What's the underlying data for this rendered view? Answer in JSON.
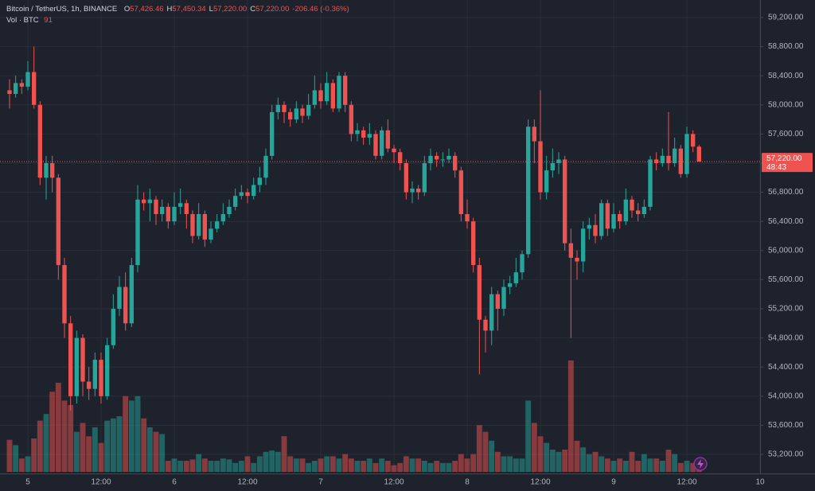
{
  "chart_data": {
    "type": "candlestick",
    "title": "Bitcoin / TetherUS, 1h, BINANCE",
    "ohlc_legend": [
      {
        "key": "O",
        "value": "57,426.46"
      },
      {
        "key": "H",
        "value": "57,450.34"
      },
      {
        "key": "L",
        "value": "57,220.00"
      },
      {
        "key": "C",
        "value": "57,220.00"
      }
    ],
    "change": "-206.46 (-0.36%)",
    "volume_legend": {
      "label": "Vol · BTC",
      "value": "91"
    },
    "up_color": "#26a69a",
    "down_color": "#ef5350",
    "grid": true,
    "ylim": [
      52960,
      59440
    ],
    "yticks": [
      {
        "value": 53200,
        "label": "53,200.00"
      },
      {
        "value": 53600,
        "label": "53,600.00"
      },
      {
        "value": 54000,
        "label": "54,000.00"
      },
      {
        "value": 54400,
        "label": "54,400.00"
      },
      {
        "value": 54800,
        "label": "54,800.00"
      },
      {
        "value": 55200,
        "label": "55,200.00"
      },
      {
        "value": 55600,
        "label": "55,600.00"
      },
      {
        "value": 56000,
        "label": "56,000.00"
      },
      {
        "value": 56400,
        "label": "56,400.00"
      },
      {
        "value": 56800,
        "label": "56,800.00"
      },
      {
        "value": 57200,
        "label": "57,200.00"
      },
      {
        "value": 57600,
        "label": "57,600.00"
      },
      {
        "value": 58000,
        "label": "58,000.00"
      },
      {
        "value": 58400,
        "label": "58,400.00"
      },
      {
        "value": 58800,
        "label": "58,800.00"
      },
      {
        "value": 59200,
        "label": "59,200.00"
      }
    ],
    "last_price": {
      "value": 57220,
      "label": "57,220.00",
      "countdown": "48:43"
    },
    "categories": [
      null,
      null,
      null,
      "5",
      null,
      null,
      null,
      null,
      null,
      null,
      null,
      null,
      null,
      null,
      null,
      "12:00",
      null,
      null,
      null,
      null,
      null,
      null,
      null,
      null,
      null,
      null,
      null,
      "6",
      null,
      null,
      null,
      null,
      null,
      null,
      null,
      null,
      null,
      null,
      null,
      "12:00",
      null,
      null,
      null,
      null,
      null,
      null,
      null,
      null,
      null,
      null,
      null,
      "7",
      null,
      null,
      null,
      null,
      null,
      null,
      null,
      null,
      null,
      null,
      null,
      "12:00",
      null,
      null,
      null,
      null,
      null,
      null,
      null,
      null,
      null,
      null,
      null,
      "8",
      null,
      null,
      null,
      null,
      null,
      null,
      null,
      null,
      null,
      null,
      null,
      "12:00",
      null,
      null,
      null,
      null,
      null,
      null,
      null,
      null,
      null,
      null,
      null,
      "9",
      null,
      null,
      null,
      null,
      null,
      null,
      null,
      null,
      null,
      null,
      null,
      "12:00",
      null,
      null,
      null,
      null,
      null,
      null,
      null,
      null,
      null,
      null,
      null,
      "10"
    ],
    "open": [
      58200,
      58150,
      58300,
      58250,
      58450,
      58000,
      57000,
      57200,
      57000,
      55800,
      55000,
      54000,
      54800,
      54200,
      54100,
      54500,
      54000,
      54700,
      55200,
      55500,
      55000,
      55800,
      56700,
      56650,
      56700,
      56500,
      56600,
      56400,
      56600,
      56650,
      56500,
      56200,
      56500,
      56150,
      56300,
      56400,
      56500,
      56600,
      56750,
      56800,
      56750,
      56900,
      57000,
      57300,
      57900,
      58000,
      57900,
      57800,
      57950,
      57850,
      58000,
      58200,
      58050,
      58300,
      57950,
      58400,
      58000,
      57600,
      57650,
      57550,
      57600,
      57300,
      57650,
      57400,
      57350,
      57200,
      56800,
      56850,
      56800,
      57200,
      57300,
      57250,
      57250,
      57300,
      57100,
      56500,
      56400,
      55800,
      55050,
      54900,
      55400,
      55200,
      55500,
      55550,
      55700,
      55950,
      57700,
      57500,
      56800,
      57100,
      57200,
      57250,
      56100,
      55900,
      55850,
      56300,
      56350,
      56200,
      56650,
      56300,
      56500,
      56400,
      56700,
      56550,
      56500,
      56600,
      57250,
      57200,
      57300,
      57200,
      57400,
      57050,
      57600,
      57426.46,
      null,
      null,
      null,
      null,
      null,
      null,
      null,
      null,
      null,
      null
    ],
    "high": [
      58350,
      58400,
      58350,
      58600,
      58800,
      58050,
      57300,
      57300,
      57050,
      55900,
      55100,
      54900,
      54850,
      54400,
      54600,
      54600,
      54800,
      55400,
      55650,
      55700,
      55900,
      56900,
      56800,
      56850,
      56750,
      56700,
      56650,
      56800,
      56850,
      56700,
      56550,
      56650,
      56550,
      56400,
      56500,
      56650,
      56700,
      56850,
      56900,
      56850,
      57000,
      57150,
      57400,
      58000,
      58100,
      58050,
      57950,
      58050,
      58000,
      58150,
      58400,
      58300,
      58450,
      58350,
      58450,
      58450,
      58050,
      57750,
      57700,
      57750,
      57650,
      57700,
      57800,
      57450,
      57400,
      57250,
      56950,
      56900,
      57300,
      57400,
      57350,
      57350,
      57400,
      57350,
      57150,
      56700,
      56450,
      55900,
      55100,
      55500,
      55450,
      55600,
      55650,
      55900,
      56000,
      57800,
      57800,
      58200,
      57300,
      57400,
      57350,
      57300,
      56300,
      56000,
      56400,
      56450,
      56500,
      56700,
      56700,
      56650,
      56550,
      56850,
      56750,
      56650,
      56700,
      57300,
      57350,
      57400,
      57900,
      57550,
      57450,
      57700,
      57650,
      57450.34,
      null,
      null,
      null,
      null,
      null,
      null,
      null,
      null,
      null,
      null
    ],
    "low": [
      57950,
      58100,
      58150,
      58200,
      57950,
      56900,
      56700,
      56800,
      55600,
      54800,
      53800,
      53900,
      54000,
      53950,
      54000,
      53900,
      53950,
      54650,
      55100,
      54900,
      54950,
      55700,
      56550,
      56400,
      56350,
      56400,
      56300,
      56350,
      56500,
      56300,
      56100,
      56150,
      56050,
      56100,
      56250,
      56350,
      56450,
      56550,
      56700,
      56650,
      56700,
      56800,
      56900,
      57250,
      57800,
      57750,
      57700,
      57750,
      57750,
      57800,
      57950,
      57950,
      58000,
      57900,
      57900,
      57900,
      57500,
      57500,
      57450,
      57450,
      57250,
      57250,
      57350,
      57200,
      57100,
      56700,
      56650,
      56700,
      56750,
      57100,
      57150,
      57150,
      57200,
      57000,
      56400,
      56300,
      55700,
      54300,
      54600,
      54700,
      54900,
      55100,
      55400,
      55500,
      55600,
      55900,
      57200,
      56700,
      56700,
      57000,
      57050,
      56000,
      54800,
      55600,
      55700,
      56150,
      56100,
      56150,
      56200,
      56250,
      56300,
      56350,
      56450,
      56400,
      56450,
      56550,
      57100,
      57150,
      57100,
      57150,
      57000,
      57000,
      57350,
      57220,
      null,
      null,
      null,
      null,
      null,
      null,
      null,
      null,
      null,
      null
    ],
    "close": [
      58150,
      58300,
      58250,
      58450,
      58000,
      57000,
      57200,
      57000,
      55800,
      55000,
      54000,
      54800,
      54200,
      54100,
      54500,
      54000,
      54700,
      55200,
      55500,
      55000,
      55800,
      56700,
      56650,
      56700,
      56500,
      56600,
      56400,
      56600,
      56650,
      56500,
      56200,
      56500,
      56150,
      56300,
      56400,
      56500,
      56600,
      56750,
      56800,
      56750,
      56900,
      57000,
      57300,
      57900,
      58000,
      57900,
      57800,
      57950,
      57850,
      58000,
      58200,
      58050,
      58300,
      57950,
      58400,
      58000,
      57600,
      57650,
      57550,
      57600,
      57300,
      57650,
      57400,
      57350,
      57200,
      56800,
      56850,
      56800,
      57200,
      57300,
      57250,
      57250,
      57300,
      57100,
      56500,
      56400,
      55800,
      55050,
      54900,
      55400,
      55200,
      55500,
      55550,
      55700,
      55950,
      57700,
      57500,
      56800,
      57100,
      57200,
      57250,
      56100,
      55900,
      55850,
      56300,
      56350,
      56200,
      56650,
      56300,
      56500,
      56400,
      56700,
      56550,
      56500,
      56600,
      57250,
      57200,
      57300,
      57200,
      57400,
      57050,
      57600,
      57426.46,
      57220,
      null,
      null,
      null,
      null,
      null,
      null,
      null,
      null,
      null,
      null
    ],
    "volume": [
      720,
      600,
      300,
      350,
      750,
      1150,
      1300,
      1800,
      2000,
      1600,
      1500,
      900,
      1100,
      800,
      1000,
      650,
      1150,
      1200,
      1250,
      1700,
      1600,
      1700,
      1200,
      1000,
      900,
      850,
      250,
      300,
      250,
      250,
      280,
      400,
      300,
      250,
      250,
      300,
      280,
      200,
      250,
      350,
      200,
      350,
      450,
      480,
      450,
      800,
      350,
      300,
      300,
      200,
      250,
      300,
      350,
      350,
      300,
      400,
      300,
      250,
      250,
      300,
      200,
      300,
      250,
      150,
      200,
      350,
      300,
      300,
      250,
      200,
      250,
      200,
      200,
      250,
      400,
      300,
      400,
      1050,
      900,
      700,
      450,
      350,
      350,
      300,
      300,
      1600,
      1100,
      800,
      650,
      500,
      450,
      500,
      2500,
      700,
      550,
      400,
      450,
      350,
      300,
      250,
      300,
      250,
      450,
      250,
      400,
      300,
      300,
      250,
      500,
      400,
      200,
      250,
      200,
      91,
      null,
      null,
      null,
      null,
      null,
      null,
      null,
      null,
      null,
      null
    ]
  }
}
